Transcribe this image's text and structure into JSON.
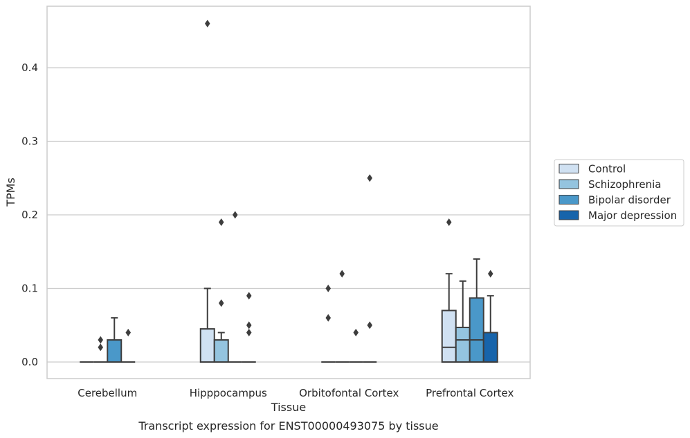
{
  "chart_data": {
    "type": "box",
    "xlabel": "Tissue",
    "ylabel": "TPMs",
    "caption": "Transcript expression for ENST00000493075 by tissue",
    "ylim": [
      -0.023,
      0.483
    ],
    "yticks": [
      "0.0",
      "0.1",
      "0.2",
      "0.3",
      "0.4"
    ],
    "grid": "horizontal",
    "legend_position": "right",
    "categories": [
      "Cerebellum",
      "Hipppocampus",
      "Orbitofontal Cortex",
      "Prefrontal Cortex"
    ],
    "series": [
      {
        "name": "Control",
        "color": "#d0e1f2",
        "boxes": [
          {
            "q1": 0,
            "median": 0,
            "q3": 0,
            "whislo": 0,
            "whishi": 0,
            "fliers": []
          },
          {
            "q1": 0,
            "median": 0,
            "q3": 0.045,
            "whislo": 0,
            "whishi": 0.1,
            "fliers": [
              0.46
            ]
          },
          {
            "q1": 0,
            "median": 0,
            "q3": 0,
            "whislo": 0,
            "whishi": 0,
            "fliers": [
              0.06,
              0.1
            ]
          },
          {
            "q1": 0,
            "median": 0.02,
            "q3": 0.07,
            "whislo": 0,
            "whishi": 0.12,
            "fliers": [
              0.19
            ]
          }
        ]
      },
      {
        "name": "Schizophrenia",
        "color": "#94c4df",
        "boxes": [
          {
            "q1": 0,
            "median": 0,
            "q3": 0,
            "whislo": 0,
            "whishi": 0,
            "fliers": [
              0.02,
              0.03
            ]
          },
          {
            "q1": 0,
            "median": 0,
            "q3": 0.03,
            "whislo": 0,
            "whishi": 0.04,
            "fliers": [
              0.08,
              0.19
            ]
          },
          {
            "q1": 0,
            "median": 0,
            "q3": 0,
            "whislo": 0,
            "whishi": 0,
            "fliers": [
              0.12
            ]
          },
          {
            "q1": 0,
            "median": 0.03,
            "q3": 0.047,
            "whislo": 0,
            "whishi": 0.11,
            "fliers": []
          }
        ]
      },
      {
        "name": "Bipolar disorder",
        "color": "#4a98c9",
        "boxes": [
          {
            "q1": 0,
            "median": 0,
            "q3": 0.03,
            "whislo": 0,
            "whishi": 0.06,
            "fliers": []
          },
          {
            "q1": 0,
            "median": 0,
            "q3": 0,
            "whislo": 0,
            "whishi": 0,
            "fliers": [
              0.2
            ]
          },
          {
            "q1": 0,
            "median": 0,
            "q3": 0,
            "whislo": 0,
            "whishi": 0,
            "fliers": [
              0.04
            ]
          },
          {
            "q1": 0,
            "median": 0.03,
            "q3": 0.087,
            "whislo": 0,
            "whishi": 0.14,
            "fliers": []
          }
        ]
      },
      {
        "name": "Major depression",
        "color": "#1764ab",
        "boxes": [
          {
            "q1": 0,
            "median": 0,
            "q3": 0,
            "whislo": 0,
            "whishi": 0,
            "fliers": [
              0.04
            ]
          },
          {
            "q1": 0,
            "median": 0,
            "q3": 0,
            "whislo": 0,
            "whishi": 0,
            "fliers": [
              0.04,
              0.05,
              0.09
            ]
          },
          {
            "q1": 0,
            "median": 0,
            "q3": 0,
            "whislo": 0,
            "whishi": 0,
            "fliers": [
              0.05,
              0.25
            ]
          },
          {
            "q1": 0,
            "median": 0,
            "q3": 0.04,
            "whislo": 0,
            "whishi": 0.09,
            "fliers": [
              0.12
            ]
          }
        ]
      }
    ]
  }
}
